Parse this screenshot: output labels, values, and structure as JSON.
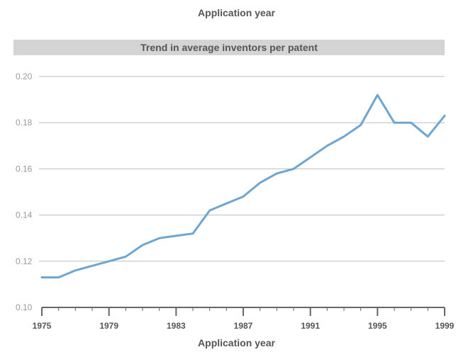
{
  "chart_data": {
    "type": "line",
    "top_label": "Application year",
    "title": "Trend in average inventors per patent",
    "xlabel": "Application year",
    "ylabel": "",
    "xlim": [
      1975,
      1999
    ],
    "ylim": [
      0.1,
      0.2
    ],
    "y_ticks": [
      "0.10",
      "0.12",
      "0.14",
      "0.16",
      "0.18",
      "0.20"
    ],
    "x_ticks": [
      "1975",
      "1979",
      "1983",
      "1987",
      "1991",
      "1995",
      "1999"
    ],
    "grid": "horizontal",
    "line_color": "#6ea6cf",
    "series": [
      {
        "x": [
          1975,
          1976,
          1977,
          1978,
          1979,
          1980,
          1981,
          1982,
          1983,
          1984,
          1985,
          1986,
          1987,
          1988,
          1989,
          1990,
          1991,
          1992,
          1993,
          1994,
          1995,
          1996,
          1997,
          1998,
          1999
        ],
        "values": [
          0.113,
          0.113,
          0.116,
          0.118,
          0.12,
          0.122,
          0.127,
          0.13,
          0.131,
          0.132,
          0.142,
          0.145,
          0.148,
          0.154,
          0.158,
          0.16,
          0.165,
          0.17,
          0.174,
          0.179,
          0.192,
          0.18,
          0.18,
          0.174,
          0.183
        ]
      }
    ]
  }
}
